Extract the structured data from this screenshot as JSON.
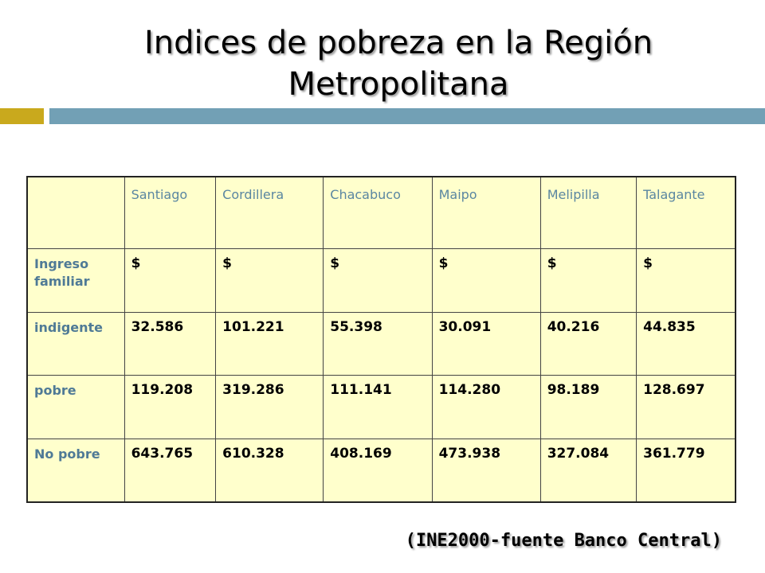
{
  "title": {
    "line1": "Indices de pobreza en la Región",
    "line2": "Metropolitana"
  },
  "colors": {
    "accent_gold": "#c9a91d",
    "accent_blue": "#72a0b5",
    "table_fill": "#ffffcc",
    "header_text": "#5a86a1"
  },
  "table": {
    "columns": [
      "Santiago",
      "Cordillera",
      "Chacabuco",
      "Maipo",
      "Melipilla",
      "Talagante"
    ],
    "rows": [
      {
        "label": "Ingreso familiar",
        "cells": [
          "$",
          "$",
          "$",
          "$",
          "$",
          "$"
        ]
      },
      {
        "label": "indigente",
        "cells": [
          "32.586",
          "101.221",
          "55.398",
          "30.091",
          "40.216",
          "44.835"
        ]
      },
      {
        "label": "pobre",
        "cells": [
          "119.208",
          "319.286",
          "111.141",
          "114.280",
          "98.189",
          "128.697"
        ]
      },
      {
        "label": "No pobre",
        "cells": [
          "643.765",
          "610.328",
          "408.169",
          "473.938",
          "327.084",
          "361.779"
        ]
      }
    ]
  },
  "source": "(INE2000-fuente Banco Central)"
}
